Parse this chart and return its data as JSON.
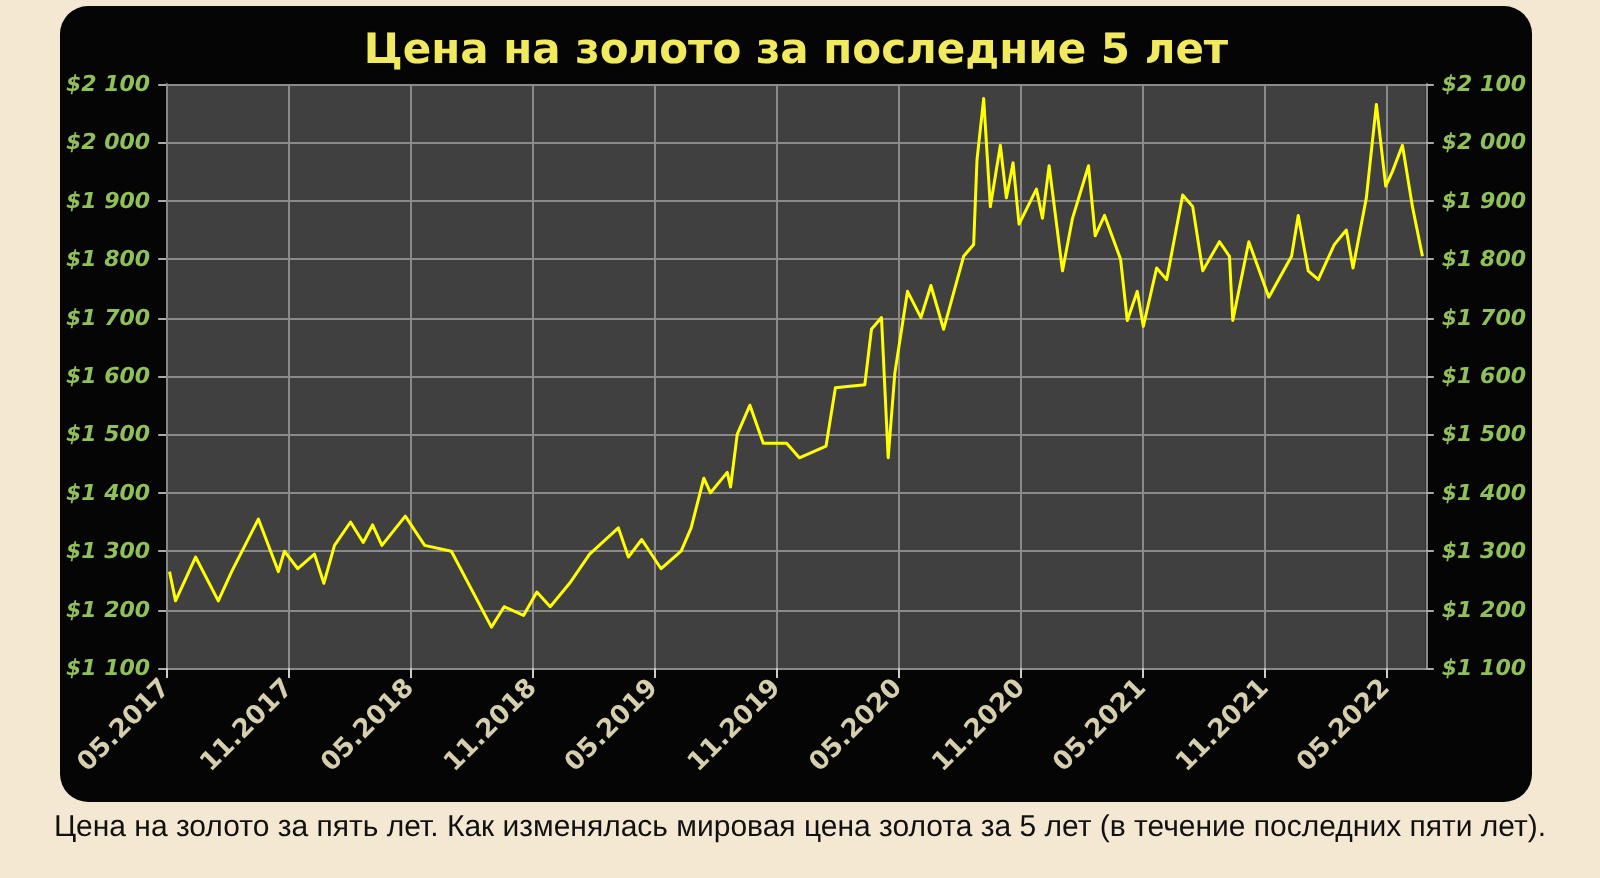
{
  "chart_data": {
    "type": "line",
    "title": "Цена на золото за последние 5 лет",
    "annotations": [
      "Цена на золото за пять лет. Как изменялась мировая цена золота за 5 лет (в течение последних пяти лет)."
    ],
    "x": [
      "2017-05-06",
      "2017-05-15",
      "2017-06-14",
      "2017-07-18",
      "2017-08-07",
      "2017-09-16",
      "2017-10-16",
      "2017-10-25",
      "2017-11-14",
      "2017-12-09",
      "2017-12-23",
      "2018-01-08",
      "2018-02-01",
      "2018-02-20",
      "2018-03-06",
      "2018-03-20",
      "2018-04-24",
      "2018-05-23",
      "2018-07-02",
      "2018-08-31",
      "2018-09-19",
      "2018-10-18",
      "2018-11-07",
      "2018-11-27",
      "2018-12-26",
      "2019-01-25",
      "2019-03-09",
      "2019-03-24",
      "2019-04-13",
      "2019-05-12",
      "2019-06-11",
      "2019-06-26",
      "2019-07-15",
      "2019-07-25",
      "2019-08-19",
      "2019-08-24",
      "2019-09-03",
      "2019-09-22",
      "2019-10-12",
      "2019-11-16",
      "2019-12-05",
      "2020-01-14",
      "2020-01-28",
      "2020-03-12",
      "2020-03-22",
      "2020-04-06",
      "2020-04-16",
      "2020-04-26",
      "2020-05-15",
      "2020-06-04",
      "2020-06-19",
      "2020-07-08",
      "2020-08-07",
      "2020-08-22",
      "2020-08-27",
      "2020-09-06",
      "2020-09-16",
      "2020-10-01",
      "2020-10-10",
      "2020-10-20",
      "2020-10-29",
      "2020-11-24",
      "2020-12-03",
      "2020-12-13",
      "2021-01-02",
      "2021-01-17",
      "2021-02-10",
      "2021-02-20",
      "2021-03-06",
      "2021-03-30",
      "2021-04-09",
      "2021-04-24",
      "2021-05-03",
      "2021-05-23",
      "2021-06-07",
      "2021-07-01",
      "2021-07-16",
      "2021-07-31",
      "2021-08-25",
      "2021-09-09",
      "2021-09-14",
      "2021-10-08",
      "2021-11-07",
      "2021-12-11",
      "2021-12-21",
      "2022-01-05",
      "2022-01-20",
      "2022-02-13",
      "2022-03-03",
      "2022-03-13",
      "2022-04-02",
      "2022-04-17",
      "2022-05-01",
      "2022-05-11",
      "2022-05-26",
      "2022-06-10",
      "2022-06-25"
    ],
    "series": [
      {
        "color": "#ffff00",
        "values": [
          1265,
          1215,
          1290,
          1215,
          1265,
          1355,
          1265,
          1300,
          1270,
          1295,
          1245,
          1310,
          1350,
          1315,
          1345,
          1310,
          1360,
          1310,
          1300,
          1170,
          1205,
          1190,
          1230,
          1205,
          1245,
          1295,
          1340,
          1290,
          1320,
          1270,
          1300,
          1340,
          1425,
          1400,
          1435,
          1410,
          1500,
          1550,
          1485,
          1485,
          1460,
          1480,
          1580,
          1585,
          1680,
          1700,
          1460,
          1605,
          1745,
          1700,
          1755,
          1680,
          1805,
          1825,
          1970,
          2075,
          1890,
          1995,
          1905,
          1965,
          1860,
          1920,
          1870,
          1960,
          1780,
          1870,
          1960,
          1840,
          1875,
          1800,
          1695,
          1745,
          1685,
          1785,
          1765,
          1910,
          1890,
          1780,
          1830,
          1805,
          1695,
          1830,
          1735,
          1805,
          1875,
          1780,
          1765,
          1825,
          1850,
          1785,
          1905,
          2065,
          1925,
          1950,
          1995,
          1890,
          1805
        ]
      }
    ],
    "xlim": [
      "2017-05-01",
      "2022-06-30"
    ],
    "xticks": [
      {
        "value": "2017-05",
        "label": "05.2017"
      },
      {
        "value": "2017-11",
        "label": "11.2017"
      },
      {
        "value": "2018-05",
        "label": "05.2018"
      },
      {
        "value": "2018-11",
        "label": "11.2018"
      },
      {
        "value": "2019-05",
        "label": "05.2019"
      },
      {
        "value": "2019-11",
        "label": "11.2019"
      },
      {
        "value": "2020-05",
        "label": "05.2020"
      },
      {
        "value": "2020-11",
        "label": "11.2020"
      },
      {
        "value": "2021-05",
        "label": "05.2021"
      },
      {
        "value": "2021-11",
        "label": "11.2021"
      },
      {
        "value": "2022-05",
        "label": "05.2022"
      }
    ],
    "ylim": [
      1100,
      2100
    ],
    "yticks": [
      {
        "value": 1100,
        "label": "$1 100"
      },
      {
        "value": 1200,
        "label": "$1 200"
      },
      {
        "value": 1300,
        "label": "$1 300"
      },
      {
        "value": 1400,
        "label": "$1 400"
      },
      {
        "value": 1500,
        "label": "$1 500"
      },
      {
        "value": 1600,
        "label": "$1 600"
      },
      {
        "value": 1700,
        "label": "$1 700"
      },
      {
        "value": 1800,
        "label": "$1 800"
      },
      {
        "value": 1900,
        "label": "$1 900"
      },
      {
        "value": 2000,
        "label": "$2 000"
      },
      {
        "value": 2100,
        "label": "$2 100"
      }
    ],
    "y2lim": [
      1100,
      2100
    ],
    "y2ticks": [
      {
        "value": 1100,
        "label": "$1 100"
      },
      {
        "value": 1200,
        "label": "$1 200"
      },
      {
        "value": 1300,
        "label": "$1 300"
      },
      {
        "value": 1400,
        "label": "$1 400"
      },
      {
        "value": 1500,
        "label": "$1 500"
      },
      {
        "value": 1600,
        "label": "$1 600"
      },
      {
        "value": 1700,
        "label": "$1 700"
      },
      {
        "value": 1800,
        "label": "$1 800"
      },
      {
        "value": 1900,
        "label": "$1 900"
      },
      {
        "value": 2000,
        "label": "$2 000"
      },
      {
        "value": 2100,
        "label": "$2 100"
      }
    ],
    "grid": true,
    "marker": "none",
    "line_style": "solid"
  }
}
